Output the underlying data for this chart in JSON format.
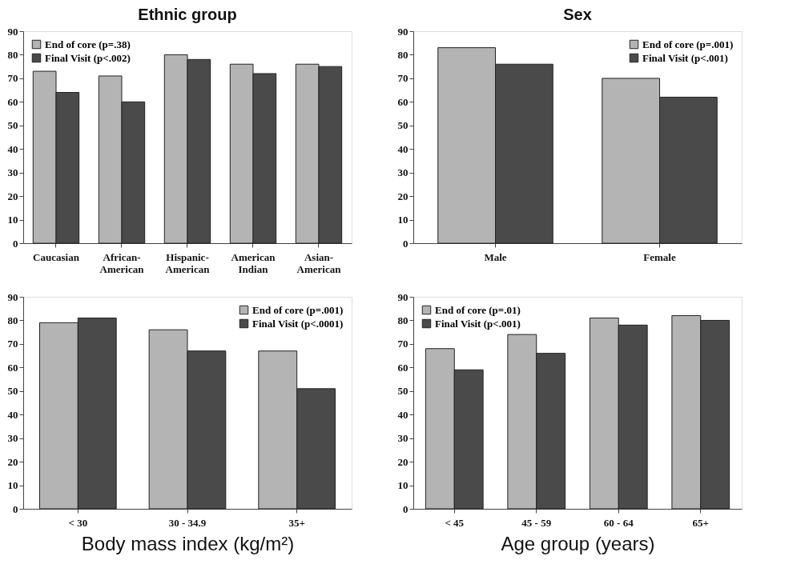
{
  "chart_data": [
    {
      "type": "bar",
      "title": "Ethnic group",
      "categories": [
        "Caucasian",
        "African-American",
        "Hispanic-American",
        "American Indian",
        "Asian-American"
      ],
      "ylim": [
        0,
        90
      ],
      "yticks": [
        0,
        10,
        20,
        30,
        40,
        50,
        60,
        70,
        80,
        90
      ],
      "grid": false,
      "legend": "top left",
      "series": [
        {
          "name": "End of core (p=.38)",
          "color": "#b4b4b4",
          "values": [
            73,
            71,
            80,
            76,
            76
          ]
        },
        {
          "name": "Final Visit (p<.002)",
          "color": "#4a4a4a",
          "values": [
            64,
            60,
            78,
            72,
            75
          ]
        }
      ]
    },
    {
      "type": "bar",
      "title": "Sex",
      "categories": [
        "Male",
        "Female"
      ],
      "ylim": [
        0,
        90
      ],
      "yticks": [
        0,
        10,
        20,
        30,
        40,
        50,
        60,
        70,
        80,
        90
      ],
      "grid": false,
      "legend": "top right",
      "series": [
        {
          "name": "End of core (p=.001)",
          "color": "#b4b4b4",
          "values": [
            83,
            70
          ]
        },
        {
          "name": "Final Visit (p<.001)",
          "color": "#4a4a4a",
          "values": [
            76,
            62
          ]
        }
      ]
    },
    {
      "type": "bar",
      "xlabel": "Body mass index (kg/m²)",
      "categories": [
        "< 30",
        "30 - 34.9",
        "35+"
      ],
      "ylim": [
        0,
        90
      ],
      "yticks": [
        0,
        10,
        20,
        30,
        40,
        50,
        60,
        70,
        80,
        90
      ],
      "grid": false,
      "legend": "top right",
      "series": [
        {
          "name": "End of core (p=.001)",
          "color": "#b4b4b4",
          "values": [
            79,
            76,
            67
          ]
        },
        {
          "name": "Final Visit (p<.0001)",
          "color": "#4a4a4a",
          "values": [
            81,
            67,
            51
          ]
        }
      ]
    },
    {
      "type": "bar",
      "xlabel": "Age group (years)",
      "categories": [
        "< 45",
        "45 - 59",
        "60 - 64",
        "65+"
      ],
      "ylim": [
        0,
        90
      ],
      "yticks": [
        0,
        10,
        20,
        30,
        40,
        50,
        60,
        70,
        80,
        90
      ],
      "grid": false,
      "legend": "top left",
      "series": [
        {
          "name": "End of core (p=.01)",
          "color": "#b4b4b4",
          "values": [
            68,
            74,
            81,
            82
          ]
        },
        {
          "name": "Final Visit (p<.001)",
          "color": "#4a4a4a",
          "values": [
            59,
            66,
            78,
            80
          ]
        }
      ]
    }
  ]
}
